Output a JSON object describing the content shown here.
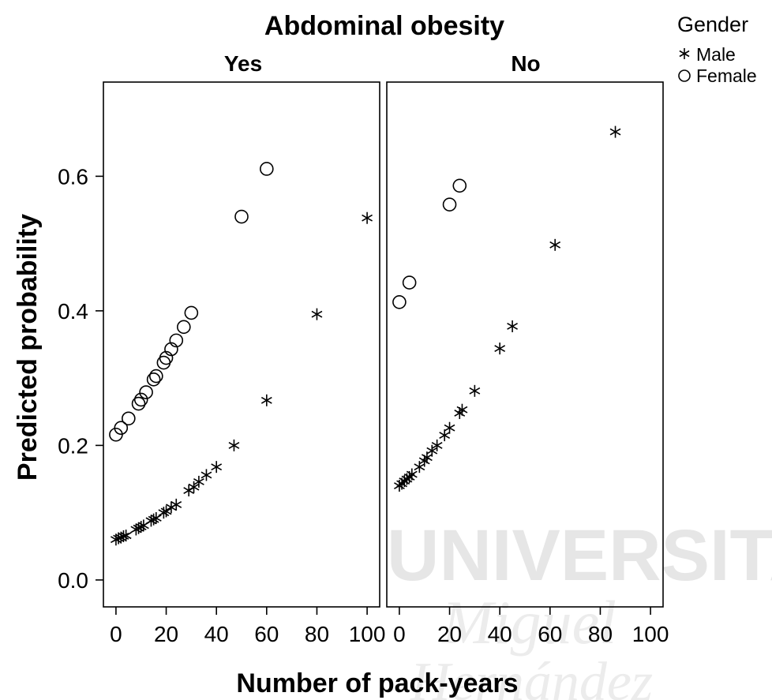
{
  "watermark": {
    "line1": "UNIVERSITAS",
    "line2": "Miguel",
    "line3": "Hernández"
  },
  "chart_data": {
    "type": "scatter",
    "title": "Abdominal obesity",
    "xlabel": "Number of pack-years",
    "ylabel": "Predicted probability",
    "xlim": [
      -5,
      105
    ],
    "ylim": [
      -0.04,
      0.74
    ],
    "xticks": [
      0,
      20,
      40,
      60,
      80,
      100
    ],
    "yticks": [
      0.0,
      0.2,
      0.4,
      0.6
    ],
    "xtick_labels": [
      "0",
      "20",
      "40",
      "60",
      "80",
      "100"
    ],
    "ytick_labels": [
      "0.0",
      "0.2",
      "0.4",
      "0.6"
    ],
    "legend": {
      "title": "Gender",
      "position": "top-right",
      "entries": [
        {
          "label": "Male",
          "marker": "star"
        },
        {
          "label": "Female",
          "marker": "circle"
        }
      ]
    },
    "panels": [
      {
        "label": "Yes",
        "series": [
          {
            "name": "Male",
            "marker": "star",
            "x": [
              0,
              1,
              2,
              3,
              4,
              8,
              9,
              10,
              11,
              14,
              15,
              16,
              19,
              20,
              22,
              24,
              29,
              31,
              33,
              36,
              40,
              47,
              60,
              80,
              100
            ],
            "y": [
              0.06,
              0.062,
              0.063,
              0.065,
              0.066,
              0.075,
              0.077,
              0.079,
              0.081,
              0.088,
              0.09,
              0.092,
              0.1,
              0.102,
              0.108,
              0.112,
              0.133,
              0.138,
              0.146,
              0.156,
              0.168,
              0.2,
              0.267,
              0.395,
              0.538
            ]
          },
          {
            "name": "Female",
            "marker": "circle",
            "x": [
              0,
              2,
              5,
              9,
              10,
              12,
              15,
              16,
              19,
              20,
              22,
              24,
              27,
              30,
              50,
              60
            ],
            "y": [
              0.216,
              0.226,
              0.24,
              0.262,
              0.268,
              0.279,
              0.298,
              0.303,
              0.323,
              0.33,
              0.343,
              0.356,
              0.376,
              0.397,
              0.54,
              0.611
            ]
          }
        ]
      },
      {
        "label": "No",
        "series": [
          {
            "name": "Male",
            "marker": "star",
            "x": [
              0,
              1,
              2,
              3,
              4,
              5,
              8,
              10,
              11,
              13,
              15,
              18,
              20,
              24,
              25,
              30,
              40,
              45,
              62,
              86
            ],
            "y": [
              0.14,
              0.143,
              0.147,
              0.15,
              0.153,
              0.157,
              0.168,
              0.177,
              0.182,
              0.192,
              0.2,
              0.215,
              0.226,
              0.248,
              0.253,
              0.281,
              0.344,
              0.377,
              0.498,
              0.666
            ]
          },
          {
            "name": "Female",
            "marker": "circle",
            "x": [
              0,
              4,
              20,
              24
            ],
            "y": [
              0.413,
              0.442,
              0.558,
              0.586
            ]
          }
        ]
      }
    ]
  }
}
